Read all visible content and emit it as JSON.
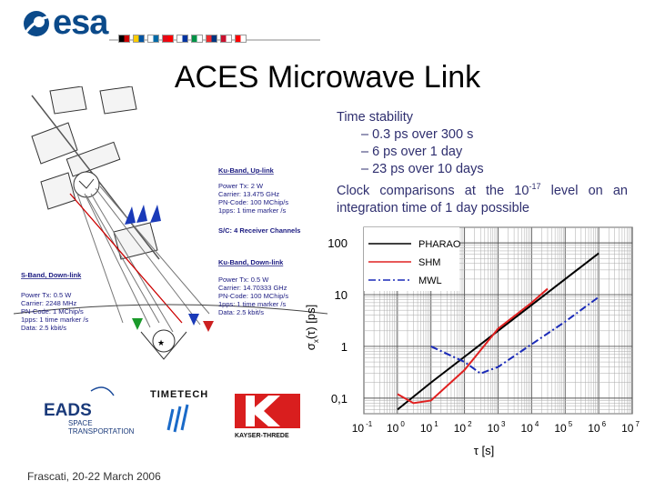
{
  "header": {
    "logo_text": "esa",
    "flag_colors": [
      "#000000",
      "#cc0000",
      "#ffcc00",
      "#0055a4",
      "#ffffff",
      "#006aa7",
      "#e30a17",
      "#ff0000",
      "#ffffff",
      "#0033a0",
      "#009246",
      "#ffffff",
      "#ef2b2d",
      "#003580",
      "#c8102e",
      "#ffffff",
      "#ff0000",
      "#ffffff"
    ]
  },
  "slide": {
    "title": "ACES Microwave Link",
    "bullets": {
      "heading": "Time stability",
      "items": [
        "– 0.3 ps over 300 s",
        "– 6 ps over 1 day",
        "– 23 ps over 10 days"
      ],
      "clock_prefix": "Clock comparisons at the 10",
      "clock_exp": "-17",
      "clock_suffix": " level on an",
      "clock_line2": "integration time of 1 day possible"
    },
    "footer": "Frascati, 20-22 March 2006"
  },
  "diagram": {
    "ku_up": {
      "title": "Ku-Band, Up-link",
      "lines": [
        "Power Tx:  2 W",
        "Carrier:    13.475 GHz",
        "PN-Code:  100 MChip/s",
        "1pps:       1 time marker /s"
      ]
    },
    "receiver_note": "S/C: 4 Receiver Channels",
    "ku_down": {
      "title": "Ku-Band, Down-link",
      "lines": [
        "Power Tx:  0.5 W",
        "Carrier:    14.70333 GHz",
        "PN-Code:  100 MChip/s",
        "1pps:       1 time marker /s",
        "Data:        2.5 kbit/s"
      ]
    },
    "s_down": {
      "title": "S-Band, Down-link",
      "lines": [
        "Power Tx:  0.5 W",
        "Carrier:    2248 MHz",
        "PN-Code:  1 MChip/s",
        "1pps:       1 time marker /s",
        "Data:        2.5 kbit/s"
      ]
    }
  },
  "logos": {
    "eads": [
      "EADS",
      "SPACE",
      "TRANSPORTATION"
    ],
    "timetech": "TIMETECH",
    "kayser": "KAYSER-THREDE"
  },
  "chart_data": {
    "type": "line",
    "xlabel": "τ [s]",
    "ylabel_main": "σ",
    "ylabel_sub": "x",
    "ylabel_rest": "(τ)  [ps]",
    "x_log": true,
    "y_log": true,
    "xlim": [
      0.1,
      10000000
    ],
    "ylim": [
      0.05,
      200
    ],
    "grid": true,
    "legend_position": "top-left",
    "x_tick_base": "10",
    "x_ticks": [
      {
        "value": 0.1,
        "exp": "-1"
      },
      {
        "value": 1,
        "exp": "0"
      },
      {
        "value": 10,
        "exp": "1"
      },
      {
        "value": 100,
        "exp": "2"
      },
      {
        "value": 1000,
        "exp": "3"
      },
      {
        "value": 10000,
        "exp": "4"
      },
      {
        "value": 100000,
        "exp": "5"
      },
      {
        "value": 1000000,
        "exp": "6"
      },
      {
        "value": 10000000,
        "exp": "7"
      }
    ],
    "y_ticks": [
      {
        "value": 100,
        "label": "100"
      },
      {
        "value": 10,
        "label": "10"
      },
      {
        "value": 1,
        "label": "1"
      },
      {
        "value": 0.1,
        "label": "0,1"
      }
    ],
    "series": [
      {
        "name": "PHARAO",
        "color": "#000000",
        "dash": "solid",
        "x": [
          1,
          10,
          100,
          1000,
          10000,
          100000,
          1000000
        ],
        "y": [
          0.06,
          0.2,
          0.63,
          2.0,
          6.3,
          20,
          63
        ]
      },
      {
        "name": "SHM",
        "color": "#e02020",
        "dash": "solid",
        "x": [
          1,
          3,
          10,
          100,
          1000,
          10000,
          30000
        ],
        "y": [
          0.12,
          0.08,
          0.09,
          0.35,
          2.2,
          7.0,
          13
        ]
      },
      {
        "name": "MWL",
        "color": "#1a2ab8",
        "dash": "dashdot",
        "x": [
          10,
          100,
          300,
          1000,
          10000,
          100000,
          1000000
        ],
        "y": [
          1.0,
          0.5,
          0.3,
          0.4,
          1.1,
          3.0,
          9.0
        ]
      }
    ]
  }
}
